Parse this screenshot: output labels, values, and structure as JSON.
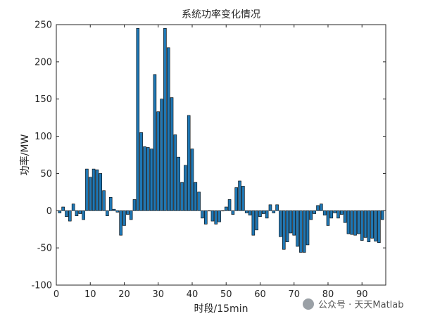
{
  "chart_data": {
    "type": "bar",
    "title": "系统功率变化情况",
    "xlabel": "时段/15min",
    "ylabel": "功率/MW",
    "xlim": [
      0,
      97
    ],
    "ylim": [
      -100,
      250
    ],
    "xticks": [
      0,
      10,
      20,
      30,
      40,
      50,
      60,
      70,
      80,
      90
    ],
    "yticks": [
      -100,
      -50,
      0,
      50,
      100,
      150,
      200,
      250
    ],
    "grid": false,
    "bar_color": "#1f77b4",
    "bar_edge_color": "#000000",
    "x": [
      1,
      2,
      3,
      4,
      5,
      6,
      7,
      8,
      9,
      10,
      11,
      12,
      13,
      14,
      15,
      16,
      17,
      18,
      19,
      20,
      21,
      22,
      23,
      24,
      25,
      26,
      27,
      28,
      29,
      30,
      31,
      32,
      33,
      34,
      35,
      36,
      37,
      38,
      39,
      40,
      41,
      42,
      43,
      44,
      45,
      46,
      47,
      48,
      49,
      50,
      51,
      52,
      53,
      54,
      55,
      56,
      57,
      58,
      59,
      60,
      61,
      62,
      63,
      64,
      65,
      66,
      67,
      68,
      69,
      70,
      71,
      72,
      73,
      74,
      75,
      76,
      77,
      78,
      79,
      80,
      81,
      82,
      83,
      84,
      85,
      86,
      87,
      88,
      89,
      90,
      91,
      92,
      93,
      94,
      95,
      96
    ],
    "values": [
      -3,
      5,
      -8,
      -14,
      9,
      -7,
      -4,
      -12,
      56,
      45,
      56,
      55,
      50,
      27,
      -7,
      18,
      2,
      -2,
      -33,
      -20,
      -5,
      -12,
      15,
      245,
      105,
      86,
      85,
      83,
      183,
      133,
      150,
      245,
      219,
      152,
      102,
      72,
      38,
      61,
      128,
      83,
      38,
      25,
      -10,
      -18,
      0,
      -14,
      -18,
      -15,
      0,
      5,
      15,
      -5,
      31,
      40,
      33,
      -3,
      -6,
      -33,
      -26,
      -8,
      -4,
      -10,
      8,
      -3,
      8,
      -35,
      -52,
      -42,
      -30,
      -33,
      -48,
      -56,
      -56,
      -46,
      -12,
      -4,
      7,
      9,
      -6,
      -20,
      -10,
      -3,
      -10,
      -5,
      -16,
      -31,
      -32,
      -33,
      -31,
      -40,
      -36,
      -42,
      -37,
      -41,
      -43,
      -12
    ],
    "watermark": "公众号 · 天天Matlab"
  }
}
